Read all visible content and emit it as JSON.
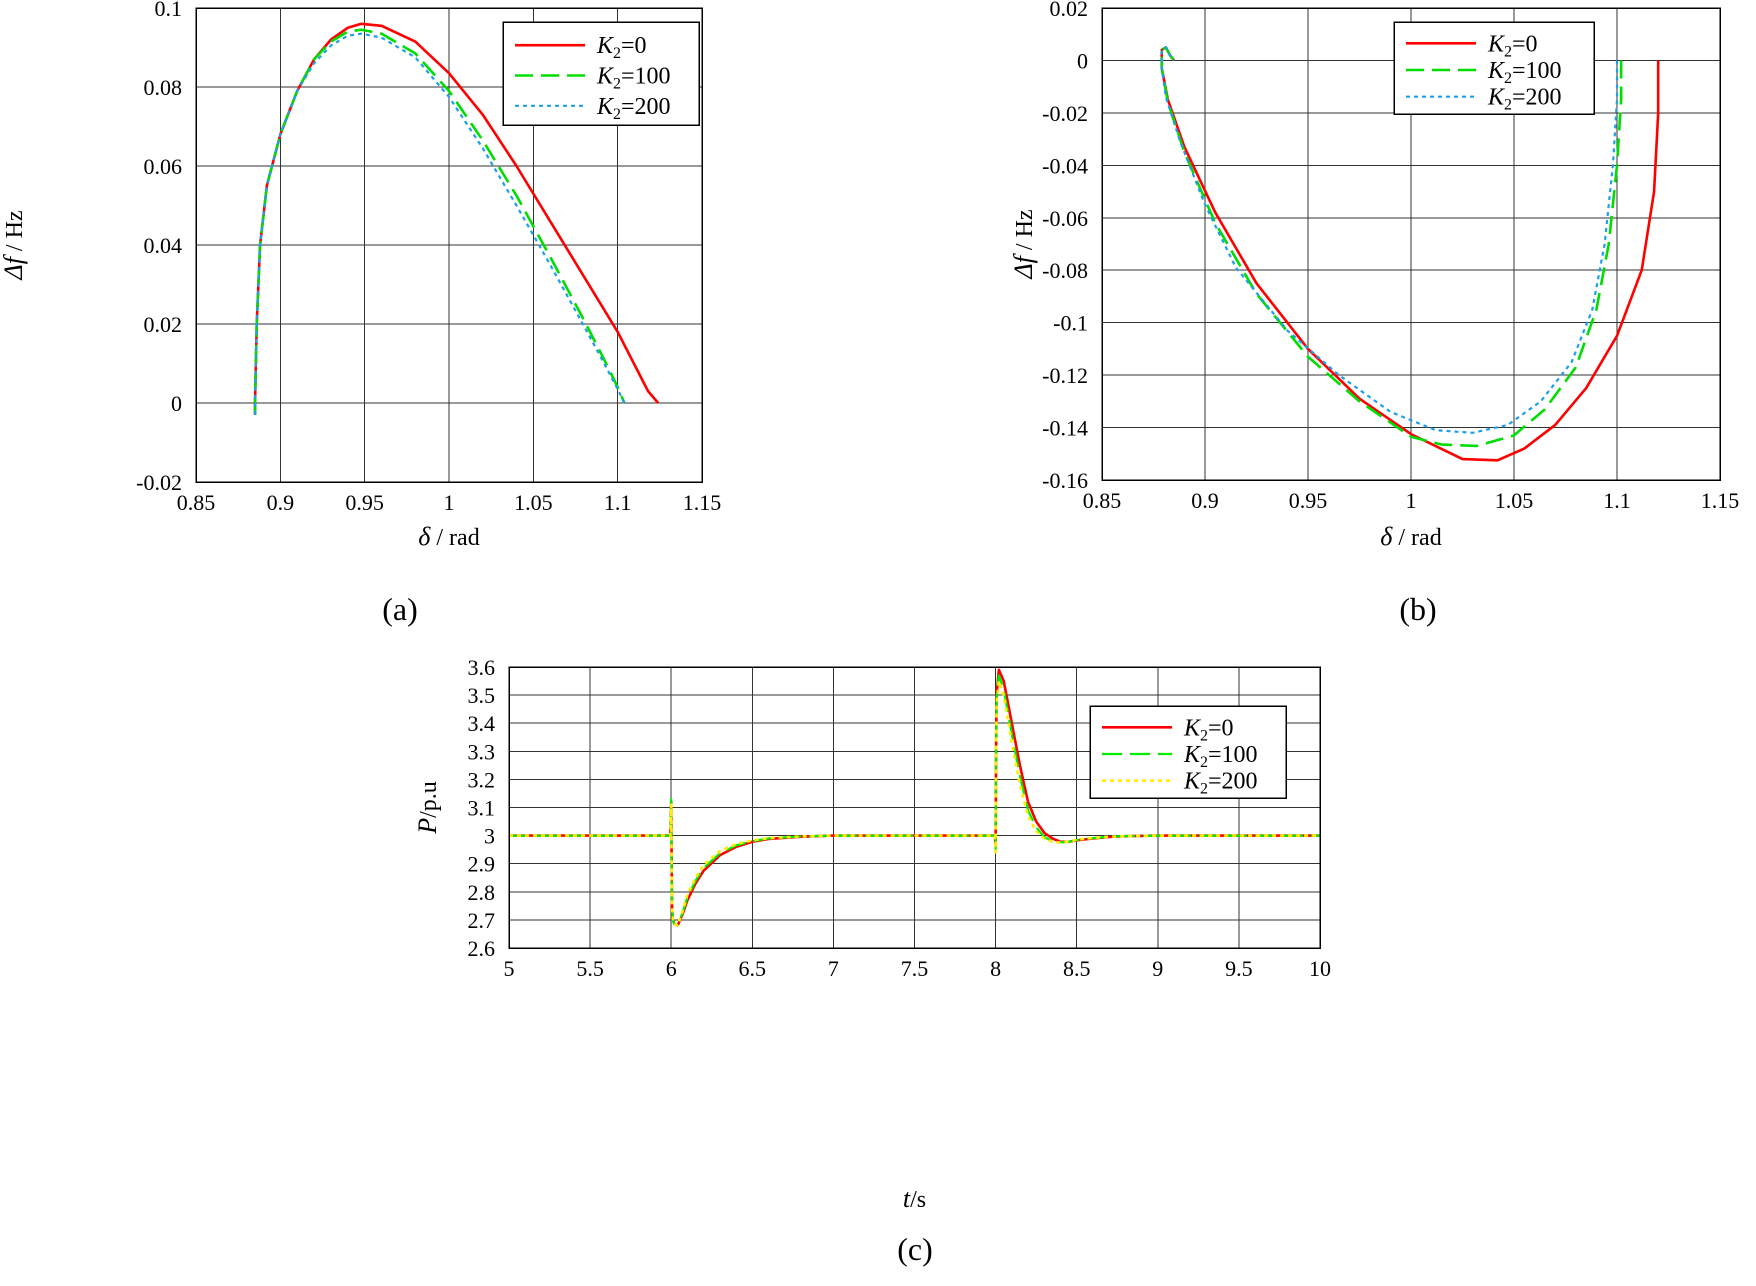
{
  "chart_data": [
    {
      "id": "a",
      "type": "line",
      "caption": "(a)",
      "xlabel": {
        "symbol": "δ",
        "unit": " / rad"
      },
      "ylabel": {
        "symbol": "Δf",
        "unit": " / Hz"
      },
      "xlim": [
        0.85,
        1.15
      ],
      "ylim": [
        -0.02,
        0.1
      ],
      "xticks": [
        0.85,
        0.9,
        0.95,
        1,
        1.05,
        1.1,
        1.15
      ],
      "xtick_labels": [
        "0.85",
        "0.9",
        "0.95",
        "1",
        "1.05",
        "1.1",
        "1.15"
      ],
      "yticks": [
        -0.02,
        0,
        0.02,
        0.04,
        0.06,
        0.08,
        0.1
      ],
      "ytick_labels": [
        "-0.02",
        "0",
        "0.02",
        "0.04",
        "0.06",
        "0.08",
        "0.1"
      ],
      "grid": true,
      "legend_position": "top-right",
      "series": [
        {
          "name_sym": "K",
          "name_sub": "2",
          "name_val": "=0",
          "color": "#ff0000",
          "dash": "none",
          "width": 2.6,
          "x": [
            0.885,
            0.885,
            0.886,
            0.888,
            0.892,
            0.9,
            0.91,
            0.92,
            0.93,
            0.94,
            0.948,
            0.96,
            0.98,
            1.0,
            1.02,
            1.04,
            1.06,
            1.08,
            1.1,
            1.112,
            1.118,
            1.124
          ],
          "y": [
            -0.003,
            0.0,
            0.02,
            0.04,
            0.055,
            0.068,
            0.079,
            0.087,
            0.092,
            0.095,
            0.096,
            0.0955,
            0.0915,
            0.0835,
            0.073,
            0.06,
            0.046,
            0.032,
            0.018,
            0.008,
            0.003,
            0.0
          ]
        },
        {
          "name_sym": "K",
          "name_sub": "2",
          "name_val": "=100",
          "color": "#00dd00",
          "dash": "18,8",
          "width": 2.6,
          "x": [
            0.885,
            0.885,
            0.886,
            0.888,
            0.892,
            0.9,
            0.91,
            0.92,
            0.93,
            0.94,
            0.948,
            0.96,
            0.98,
            1.0,
            1.02,
            1.04,
            1.06,
            1.08,
            1.092,
            1.1,
            1.104
          ],
          "y": [
            -0.003,
            0.0,
            0.02,
            0.04,
            0.055,
            0.068,
            0.079,
            0.087,
            0.0915,
            0.094,
            0.0945,
            0.0935,
            0.0885,
            0.079,
            0.0665,
            0.0525,
            0.037,
            0.021,
            0.011,
            0.004,
            0.0
          ]
        },
        {
          "name_sym": "K",
          "name_sub": "2",
          "name_val": "=200",
          "color": "#1e9fe8",
          "dash": "4,4",
          "width": 2.2,
          "x": [
            0.885,
            0.885,
            0.886,
            0.888,
            0.892,
            0.9,
            0.91,
            0.92,
            0.93,
            0.94,
            0.948,
            0.96,
            0.98,
            1.0,
            1.02,
            1.04,
            1.06,
            1.08,
            1.092,
            1.1,
            1.104
          ],
          "y": [
            -0.003,
            0.0,
            0.02,
            0.04,
            0.055,
            0.068,
            0.079,
            0.086,
            0.0905,
            0.093,
            0.0935,
            0.0925,
            0.0875,
            0.0775,
            0.0645,
            0.05,
            0.035,
            0.0195,
            0.01,
            0.0035,
            0.0
          ]
        }
      ]
    },
    {
      "id": "b",
      "type": "line",
      "caption": "(b)",
      "xlabel": {
        "symbol": "δ",
        "unit": " / rad"
      },
      "ylabel": {
        "symbol": "Δf",
        "unit": " / Hz"
      },
      "xlim": [
        0.85,
        1.15
      ],
      "ylim": [
        -0.16,
        0.02
      ],
      "xticks": [
        0.85,
        0.9,
        0.95,
        1,
        1.05,
        1.1,
        1.15
      ],
      "xtick_labels": [
        "0.85",
        "0.9",
        "0.95",
        "1",
        "1.05",
        "1.1",
        "1.15"
      ],
      "yticks": [
        -0.16,
        -0.14,
        -0.12,
        -0.1,
        -0.08,
        -0.06,
        -0.04,
        -0.02,
        0,
        0.02
      ],
      "ytick_labels": [
        "-0.16",
        "-0.14",
        "-0.12",
        "-0.1",
        "-0.08",
        "-0.06",
        "-0.04",
        "-0.02",
        "0",
        "0.02"
      ],
      "grid": true,
      "legend_position": "top-right",
      "series": [
        {
          "name_sym": "K",
          "name_sub": "2",
          "name_val": "=0",
          "color": "#ff0000",
          "dash": "none",
          "width": 2.6,
          "x": [
            1.12,
            1.12,
            1.118,
            1.112,
            1.1,
            1.085,
            1.07,
            1.055,
            1.042,
            1.025,
            1.0,
            0.975,
            0.95,
            0.925,
            0.905,
            0.89,
            0.882,
            0.879,
            0.879,
            0.881,
            0.883,
            0.885
          ],
          "y": [
            0.0,
            -0.02,
            -0.05,
            -0.08,
            -0.105,
            -0.125,
            -0.139,
            -0.148,
            -0.1525,
            -0.152,
            -0.1425,
            -0.129,
            -0.11,
            -0.085,
            -0.058,
            -0.033,
            -0.015,
            -0.003,
            0.004,
            0.005,
            0.002,
            0.0
          ]
        },
        {
          "name_sym": "K",
          "name_sub": "2",
          "name_val": "=100",
          "color": "#00dd00",
          "dash": "18,8",
          "width": 2.6,
          "x": [
            1.102,
            1.102,
            1.1,
            1.096,
            1.09,
            1.08,
            1.065,
            1.05,
            1.032,
            1.015,
            1.0,
            0.975,
            0.95,
            0.925,
            0.905,
            0.89,
            0.882,
            0.879,
            0.879,
            0.881,
            0.883,
            0.885
          ],
          "y": [
            0.0,
            -0.015,
            -0.04,
            -0.07,
            -0.095,
            -0.117,
            -0.133,
            -0.143,
            -0.147,
            -0.1465,
            -0.1435,
            -0.13,
            -0.113,
            -0.089,
            -0.062,
            -0.035,
            -0.016,
            -0.003,
            0.004,
            0.005,
            0.002,
            0.0
          ]
        },
        {
          "name_sym": "K",
          "name_sub": "2",
          "name_val": "=200",
          "color": "#1e9fe8",
          "dash": "4,4",
          "width": 2.2,
          "x": [
            1.1,
            1.1,
            1.098,
            1.094,
            1.088,
            1.078,
            1.063,
            1.047,
            1.03,
            1.012,
            0.99,
            0.965,
            0.94,
            0.915,
            0.9,
            0.888,
            0.881,
            0.879,
            0.879,
            0.881,
            0.883,
            0.885
          ],
          "y": [
            0.0,
            -0.015,
            -0.04,
            -0.07,
            -0.095,
            -0.115,
            -0.13,
            -0.139,
            -0.142,
            -0.141,
            -0.134,
            -0.12,
            -0.103,
            -0.079,
            -0.055,
            -0.031,
            -0.014,
            -0.003,
            0.004,
            0.005,
            0.002,
            0.0
          ]
        }
      ]
    },
    {
      "id": "c",
      "type": "line",
      "caption": "(c)",
      "xlabel": {
        "symbol": "t",
        "unit": "/s"
      },
      "ylabel": {
        "symbol": "P",
        "unit": "/p.u"
      },
      "xlim": [
        5,
        10
      ],
      "ylim": [
        2.6,
        3.6
      ],
      "xticks": [
        5,
        5.5,
        6,
        6.5,
        7,
        7.5,
        8,
        8.5,
        9,
        9.5,
        10
      ],
      "xtick_labels": [
        "5",
        "5.5",
        "6",
        "6.5",
        "7",
        "7.5",
        "8",
        "8.5",
        "9",
        "9.5",
        "10"
      ],
      "yticks": [
        2.6,
        2.7,
        2.8,
        2.9,
        3,
        3.1,
        3.2,
        3.3,
        3.4,
        3.5,
        3.6
      ],
      "ytick_labels": [
        "2.6",
        "2.7",
        "2.8",
        "2.9",
        "3",
        "3.1",
        "3.2",
        "3.3",
        "3.4",
        "3.5",
        "3.6"
      ],
      "grid": true,
      "legend_position": "top-right",
      "series": [
        {
          "name_sym": "K",
          "name_sub": "2",
          "name_val": "=0",
          "color": "#ff0000",
          "dash": "none",
          "width": 2.6,
          "x": [
            5.0,
            5.995,
            6.0,
            6.003,
            6.005,
            6.01,
            6.02,
            6.04,
            6.07,
            6.1,
            6.15,
            6.2,
            6.3,
            6.4,
            6.5,
            6.6,
            6.8,
            7.0,
            7.995,
            8.0,
            8.003,
            8.006,
            8.02,
            8.05,
            8.1,
            8.15,
            8.2,
            8.25,
            8.3,
            8.35,
            8.4,
            8.45,
            8.5,
            8.6,
            8.7,
            8.8,
            9.0,
            10.0
          ],
          "y": [
            3.0,
            3.0,
            3.12,
            2.9,
            2.75,
            2.7,
            2.685,
            2.68,
            2.72,
            2.77,
            2.83,
            2.875,
            2.93,
            2.96,
            2.978,
            2.988,
            2.996,
            3.0,
            3.0,
            2.96,
            3.3,
            3.5,
            3.59,
            3.55,
            3.4,
            3.25,
            3.12,
            3.05,
            3.01,
            2.99,
            2.978,
            2.978,
            2.983,
            2.99,
            2.995,
            2.998,
            3.0,
            3.0
          ]
        },
        {
          "name_sym": "K",
          "name_sub": "2",
          "name_val": "=100",
          "color": "#00ee00",
          "dash": "20,8",
          "width": 2.2,
          "x": [
            5.0,
            5.995,
            6.0,
            6.003,
            6.005,
            6.01,
            6.02,
            6.04,
            6.07,
            6.1,
            6.15,
            6.2,
            6.3,
            6.4,
            6.5,
            6.6,
            6.8,
            7.0,
            7.995,
            8.0,
            8.003,
            8.006,
            8.02,
            8.05,
            8.1,
            8.15,
            8.2,
            8.25,
            8.3,
            8.35,
            8.4,
            8.45,
            8.5,
            8.6,
            8.7,
            8.8,
            9.0,
            10.0
          ],
          "y": [
            3.0,
            3.0,
            3.13,
            2.9,
            2.75,
            2.7,
            2.685,
            2.68,
            2.725,
            2.78,
            2.84,
            2.885,
            2.937,
            2.965,
            2.98,
            2.99,
            2.997,
            3.0,
            3.0,
            2.95,
            3.3,
            3.49,
            3.57,
            3.52,
            3.36,
            3.21,
            3.09,
            3.03,
            2.995,
            2.98,
            2.976,
            2.978,
            2.984,
            2.991,
            2.996,
            2.998,
            3.0,
            3.0
          ]
        },
        {
          "name_sym": "K",
          "name_sub": "2",
          "name_val": "=200",
          "color": "#ffee00",
          "dash": "4,4",
          "width": 2.6,
          "x": [
            5.0,
            5.995,
            6.0,
            6.003,
            6.005,
            6.01,
            6.02,
            6.04,
            6.07,
            6.1,
            6.15,
            6.2,
            6.3,
            6.4,
            6.5,
            6.6,
            6.8,
            7.0,
            7.995,
            8.0,
            8.003,
            8.006,
            8.02,
            8.05,
            8.1,
            8.15,
            8.2,
            8.25,
            8.3,
            8.35,
            8.4,
            8.45,
            8.5,
            8.6,
            8.7,
            8.8,
            9.0,
            10.0
          ],
          "y": [
            3.0,
            3.0,
            3.11,
            2.9,
            2.75,
            2.7,
            2.685,
            2.68,
            2.73,
            2.79,
            2.85,
            2.895,
            2.945,
            2.97,
            2.983,
            2.991,
            2.997,
            3.0,
            3.0,
            2.94,
            3.28,
            3.47,
            3.55,
            3.5,
            3.33,
            3.18,
            3.07,
            3.015,
            2.99,
            2.978,
            2.975,
            2.978,
            2.985,
            2.992,
            2.996,
            2.998,
            3.0,
            3.0
          ]
        }
      ]
    }
  ]
}
